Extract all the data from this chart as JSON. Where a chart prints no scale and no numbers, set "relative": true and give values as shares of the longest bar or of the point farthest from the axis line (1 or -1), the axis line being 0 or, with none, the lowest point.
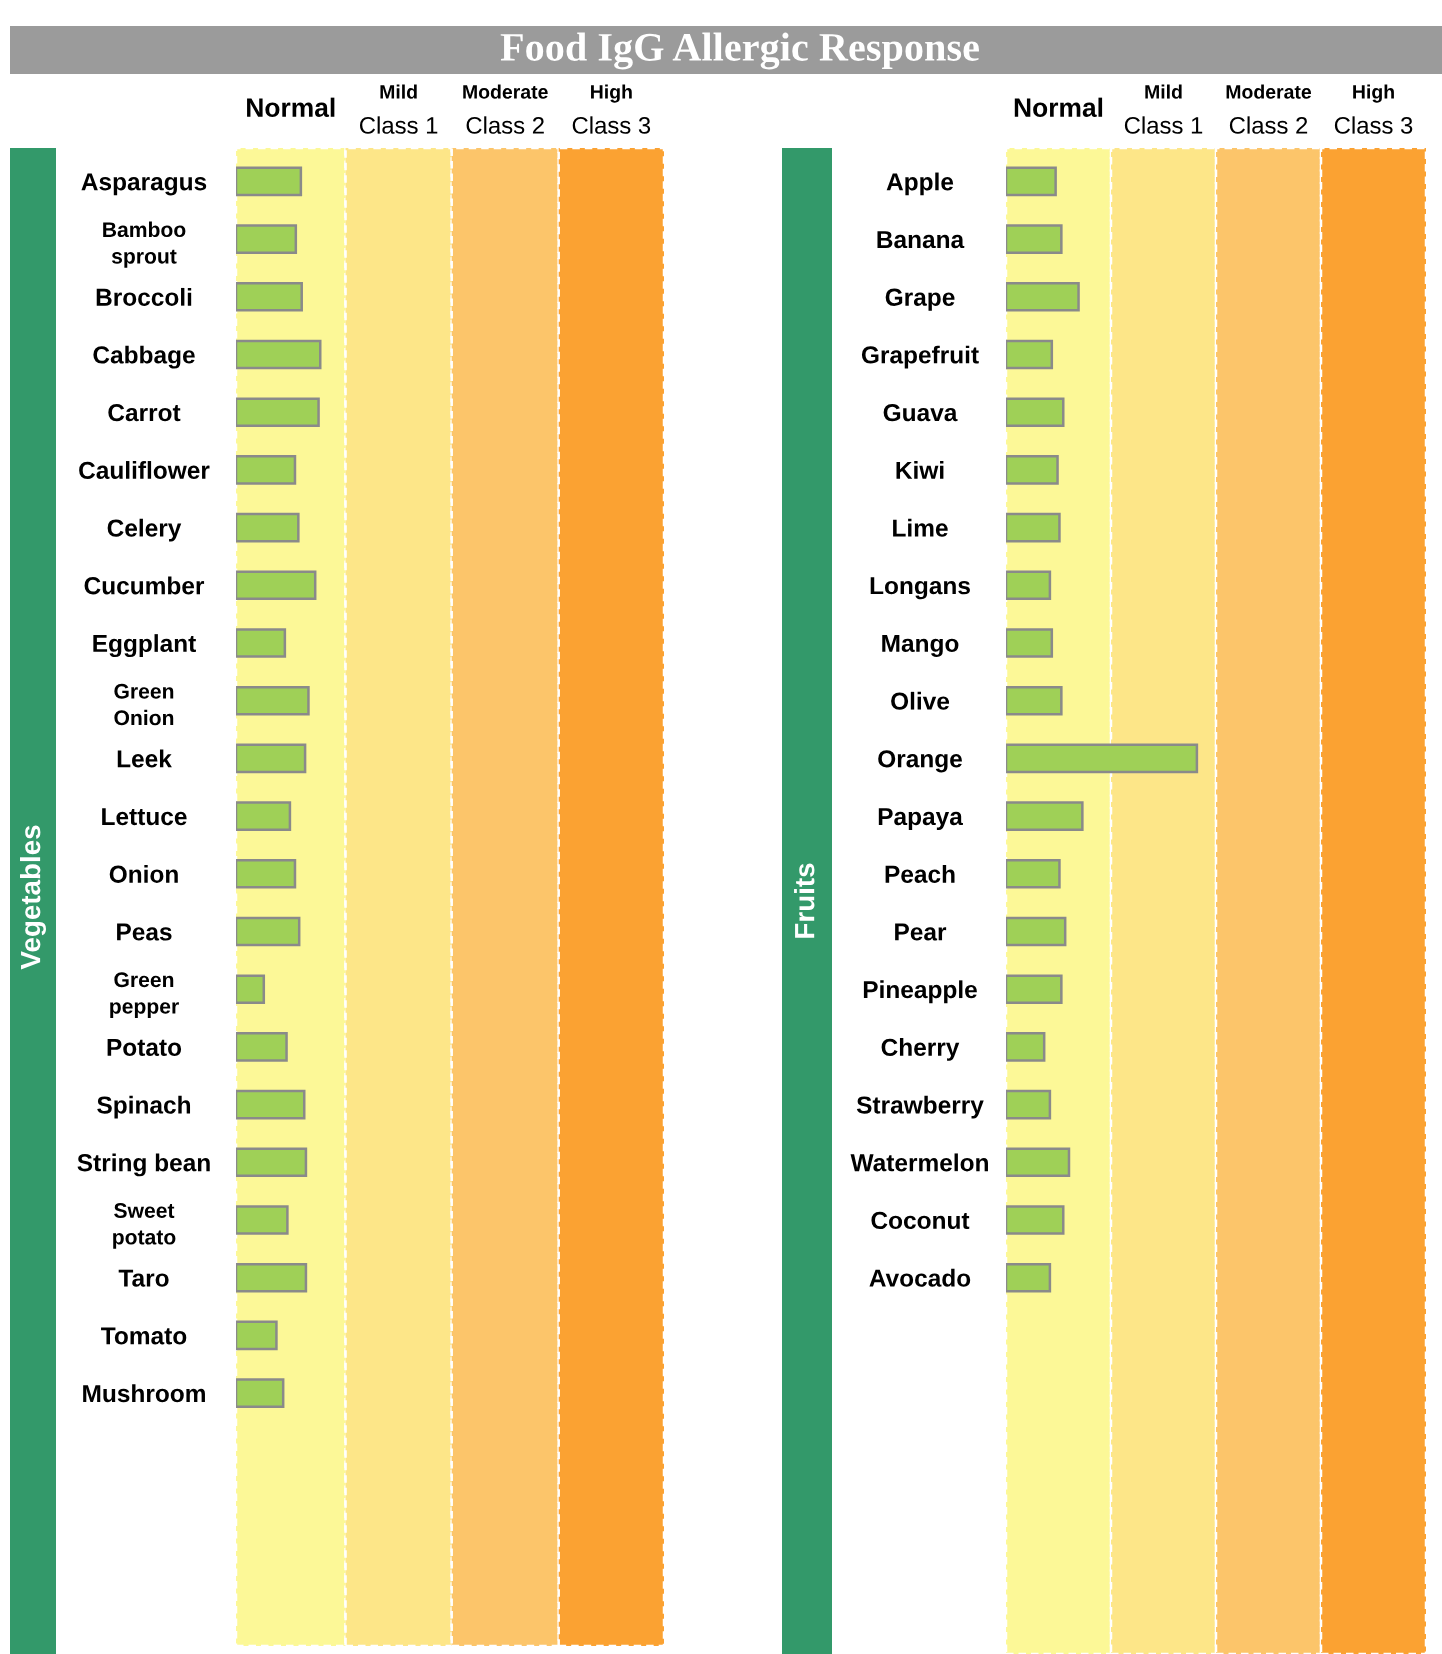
{
  "chart_data": [
    {
      "type": "bar",
      "orientation": "horizontal",
      "relative": true,
      "ylabel": "Vegetables",
      "color": "#9fd057",
      "categories": [
        "Asparagus",
        "Bamboo\nsprout",
        "Broccoli",
        "Cabbage",
        "Carrot",
        "Cauliflower",
        "Celery",
        "Cucumber",
        "Eggplant",
        "Green\nOnion",
        "Leek",
        "Lettuce",
        "Onion",
        "Peas",
        "Green\npepper",
        "Potato",
        "Spinach",
        "String bean",
        "Sweet\npotato",
        "Taro",
        "Tomato",
        "Mushroom"
      ],
      "values": [
        0.77,
        0.71,
        0.78,
        1,
        0.98,
        0.7,
        0.74,
        0.94,
        0.58,
        0.86,
        0.82,
        0.64,
        0.7,
        0.75,
        0.33,
        0.6,
        0.81,
        0.83,
        0.61,
        0.83,
        0.48,
        0.56
      ],
      "bands": [
        {
          "axis": "x",
          "from": 0,
          "to": 1.3,
          "label": "Normal",
          "color": "#fcf897"
        },
        {
          "axis": "x",
          "from": 1.3,
          "to": 2.56,
          "label": "Mild\nClass 1",
          "color": "#fde688"
        },
        {
          "axis": "x",
          "from": 2.56,
          "to": 3.83,
          "label": "Moderate\nClass 2",
          "color": "#fcc56a"
        },
        {
          "axis": "x",
          "from": 3.83,
          "to": 5.08,
          "label": "High\nClass 3",
          "color": "#fba232"
        }
      ]
    },
    {
      "type": "bar",
      "orientation": "horizontal",
      "relative": true,
      "title": "Food IgG Allergic Response",
      "ylabel": "Fruits",
      "color": "#9fd057",
      "categories": [
        "Apple",
        "Banana",
        "Grape",
        "Grapefruit",
        "Guava",
        "Kiwi",
        "Lime",
        "Longans",
        "Mango",
        "Olive",
        "Orange",
        "Papaya",
        "Peach",
        "Pear",
        "Pineapple",
        "Cherry",
        "Strawberry",
        "Watermelon",
        "Coconut",
        "Avocado"
      ],
      "values": [
        0.26,
        0.29,
        0.38,
        0.24,
        0.3,
        0.27,
        0.28,
        0.23,
        0.24,
        0.29,
        1,
        0.4,
        0.28,
        0.31,
        0.29,
        0.2,
        0.23,
        0.33,
        0.3,
        0.23
      ],
      "bands": [
        {
          "axis": "x",
          "from": 0,
          "to": 0.55,
          "label": "Normal",
          "color": "#fcf897"
        },
        {
          "axis": "x",
          "from": 0.55,
          "to": 1.1,
          "label": "Mild\nClass 1",
          "color": "#fde688"
        },
        {
          "axis": "x",
          "from": 1.1,
          "to": 1.65,
          "label": "Moderate\nClass 2",
          "color": "#fcc56a"
        },
        {
          "axis": "x",
          "from": 1.65,
          "to": 2.2,
          "label": "High\nClass 3",
          "color": "#fba232"
        }
      ]
    }
  ]
}
